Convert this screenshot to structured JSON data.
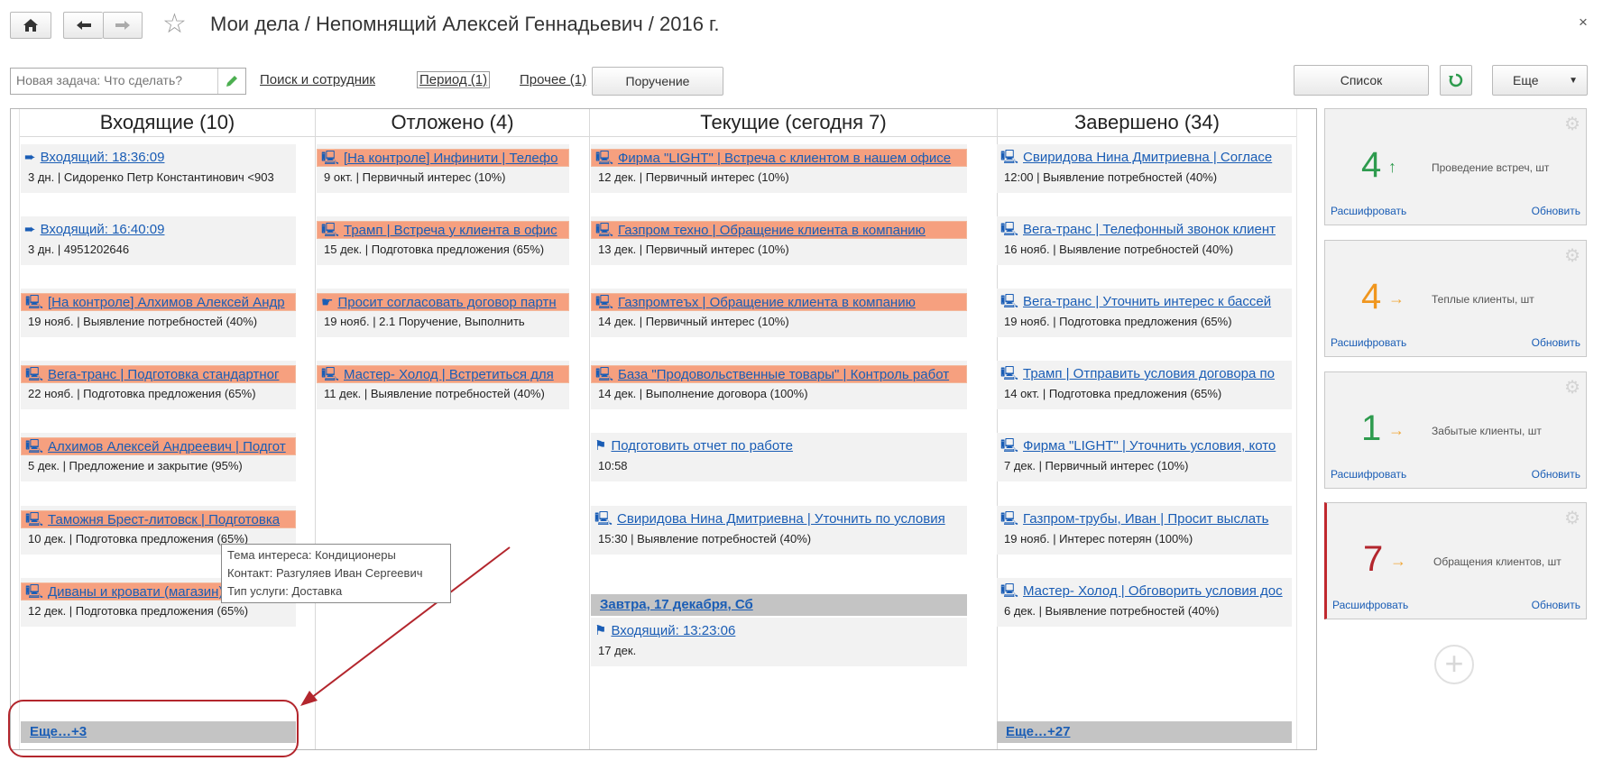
{
  "header": {
    "title": "Мои дела / Непомнящий Алексей Геннадьевич / 2016 г.",
    "close": "×"
  },
  "toolbar": {
    "new_task_placeholder": "Новая задача: Что сделать?",
    "search_link": "Поиск и сотрудник",
    "period_link": "Период (1)",
    "other_link": "Прочее (1)",
    "assign_button": "Поручение",
    "list_button": "Список",
    "more_button": "Еще"
  },
  "columns": {
    "incoming": {
      "header": "Входящие (10)",
      "more": "Еще…+3",
      "cards": [
        {
          "title": "Входящий: 18:36:09",
          "sub": "3 дн. | Сидоренко Петр Константинович <903",
          "icon": "incoming-arrow-icon",
          "highlight": false
        },
        {
          "title": "Входящий: 16:40:09",
          "sub": "3 дн. | 4951202646",
          "icon": "incoming-arrow-icon",
          "highlight": false
        },
        {
          "title": "[На контроле] Алхимов Алексей Андр",
          "sub": "19 нояб. | Выявление потребностей (40%)",
          "icon": "monitor-icon",
          "highlight": true
        },
        {
          "title": "Вега-транс | Подготовка стандартног",
          "sub": "22 нояб. | Подготовка предложения (65%)",
          "icon": "monitor-icon",
          "highlight": true
        },
        {
          "title": "Алхимов Алексей Андреевич | Подгот",
          "sub": "5 дек. | Предложение и закрытие (95%)",
          "icon": "monitor-icon",
          "highlight": true
        },
        {
          "title": "Таможня Брест-литовск | Подготовка",
          "sub": "10 дек. | Подготовка предложения (65%)",
          "icon": "monitor-icon",
          "highlight": true
        },
        {
          "title": "Диваны и кровати (магазин) | Уточн",
          "sub": "12 дек. | Подготовка предложения (65%)",
          "icon": "monitor-icon",
          "highlight": true
        }
      ]
    },
    "postponed": {
      "header": "Отложено (4)",
      "cards": [
        {
          "title": "[На контроле] Инфинити | Телефо",
          "sub": "9 окт. | Первичный интерес (10%)",
          "icon": "monitor-icon",
          "highlight": true
        },
        {
          "title": "Трамп | Встреча у клиента в офис",
          "sub": "15 дек. | Подготовка предложения (65%)",
          "icon": "monitor-icon",
          "highlight": true
        },
        {
          "title": "Просит согласовать договор партн",
          "sub": "19 нояб. | 2.1 Поручение, Выполнить",
          "icon": "assignment-icon",
          "highlight": true
        },
        {
          "title": "Мастер- Холод | Встретиться для",
          "sub": "11 дек. | Выявление потребностей (40%)",
          "icon": "monitor-icon",
          "highlight": true
        }
      ]
    },
    "current": {
      "header": "Текущие (сегодня 7)",
      "cards": [
        {
          "title": "Фирма \"LIGHT\" | Встреча с клиентом в нашем офисе",
          "sub": "12 дек. | Первичный интерес (10%)",
          "icon": "monitor-icon",
          "highlight": true
        },
        {
          "title": "Газпром техно | Обращение клиента в компанию",
          "sub": "13 дек. | Первичный интерес (10%)",
          "icon": "monitor-icon",
          "highlight": true
        },
        {
          "title": "Газпромтеъх | Обращение клиента в компанию",
          "sub": "14 дек. | Первичный интерес (10%)",
          "icon": "monitor-icon",
          "highlight": true
        },
        {
          "title": "База \"Продовольственные товары\" | Контроль работ",
          "sub": "14 дек. | Выполнение договора (100%)",
          "icon": "monitor-icon",
          "highlight": true
        },
        {
          "title": "Подготовить отчет по работе",
          "sub": "10:58",
          "icon": "flag-icon",
          "highlight": false
        },
        {
          "title": "Свиридова Нина Дмитриевна | Уточнить по условия",
          "sub": "15:30 | Выявление потребностей (40%)",
          "icon": "monitor-icon",
          "highlight": false
        }
      ],
      "tomorrow_label": "Завтра, 17 декабря, Сб",
      "tomorrow_card": {
        "title": "Входящий: 13:23:06",
        "sub": "17 дек.",
        "icon": "flag-icon",
        "highlight": false
      }
    },
    "done": {
      "header": "Завершено (34)",
      "more": "Еще…+27",
      "cards": [
        {
          "title": "Свиридова Нина Дмитриевна | Согласе",
          "sub": "12:00 | Выявление потребностей (40%)",
          "icon": "monitor-icon",
          "highlight": false
        },
        {
          "title": "Вега-транс | Телефонный звонок клиент",
          "sub": "16 нояб. | Выявление потребностей (40%)",
          "icon": "monitor-icon",
          "highlight": false
        },
        {
          "title": "Вега-транс | Уточнить интерес к бассей",
          "sub": "19 нояб. | Подготовка предложения (65%)",
          "icon": "monitor-icon",
          "highlight": false
        },
        {
          "title": "Трамп | Отправить условия договора по",
          "sub": "14 окт. | Подготовка предложения (65%)",
          "icon": "monitor-icon",
          "highlight": false
        },
        {
          "title": "Фирма \"LIGHT\" | Уточнить условия, кото",
          "sub": "7 дек. | Первичный интерес (10%)",
          "icon": "monitor-icon",
          "highlight": false
        },
        {
          "title": "Газпром-трубы, Иван | Просит выслать",
          "sub": "19 нояб. | Интерес потерян (100%)",
          "icon": "monitor-icon",
          "highlight": false
        },
        {
          "title": "Мастер- Холод | Обговорить условия дос",
          "sub": "6 дек. | Выявление потребностей (40%)",
          "icon": "monitor-icon",
          "highlight": false
        }
      ]
    }
  },
  "tooltip": {
    "line1": "Тема интереса: Кондиционеры",
    "line2": "Контакт: Разгуляев Иван Сергеевич",
    "line3": "Тип услуги: Доставка"
  },
  "kpis": [
    {
      "value": "4",
      "arrow": "↑",
      "color": "#2e9b4e",
      "label": "Проведение встреч, шт",
      "decode": "Расшифровать",
      "refresh": "Обновить"
    },
    {
      "value": "4",
      "arrow": "→",
      "color": "#f0961e",
      "label": "Теплые клиенты, шт",
      "decode": "Расшифровать",
      "refresh": "Обновить"
    },
    {
      "value": "1",
      "arrow": "→",
      "color": "#2e9b4e",
      "label": "Забытые клиенты, шт",
      "decode": "Расшифровать",
      "refresh": "Обновить"
    },
    {
      "value": "7",
      "arrow": "→",
      "color": "#b3262d",
      "label": "Обращения клиентов, шт",
      "decode": "Расшифровать",
      "refresh": "Обновить"
    }
  ],
  "colors": {
    "highlight": "#f6a07f",
    "link": "#1a5db5",
    "annotation": "#b3262d"
  }
}
